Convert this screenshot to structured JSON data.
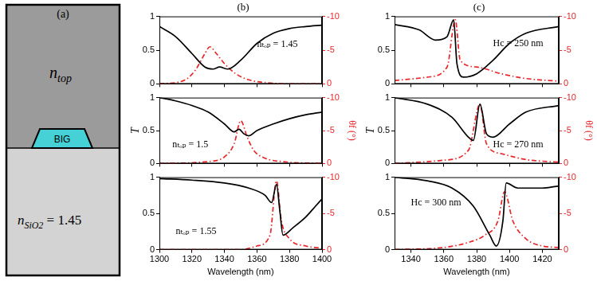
{
  "diagram": {
    "label": "(a)",
    "top_medium": {
      "symbol": "n",
      "subscript": "top"
    },
    "core": "BIG",
    "substrate": {
      "symbol": "n",
      "subscript": "SiO2",
      "text": " = 1.45"
    }
  },
  "chart_data": [
    {
      "type": "line",
      "title": "(b)",
      "annotation": "nₜₒₚ = 1.45",
      "tick_labels": "y",
      "xlim": [
        1300,
        1400
      ],
      "xticks": [
        1300,
        1320,
        1340,
        1360,
        1380,
        1400
      ],
      "ylim": [
        0,
        1
      ],
      "yticks": [
        0,
        0.5,
        1
      ],
      "y2lim": [
        0,
        -10
      ],
      "y2ticks": [
        -10,
        -5,
        0
      ],
      "series": [
        {
          "color": "#000000",
          "line_style": "solid",
          "x": [
            1300,
            1310,
            1320,
            1328,
            1333,
            1337,
            1342,
            1350,
            1360,
            1370,
            1380,
            1390,
            1400
          ],
          "values": [
            0.85,
            0.7,
            0.45,
            0.25,
            0.22,
            0.25,
            0.22,
            0.35,
            0.6,
            0.75,
            0.82,
            0.85,
            0.87
          ]
        },
        {
          "color": "#e8262b",
          "line_style": "dashdot",
          "axis": "y2",
          "x": [
            1300,
            1315,
            1322,
            1328,
            1331,
            1335,
            1340,
            1347,
            1355,
            1365,
            1380,
            1400
          ],
          "values": [
            0,
            -0.5,
            -2,
            -4.5,
            -5.5,
            -4.5,
            -3,
            -1.5,
            -0.6,
            -0.2,
            0,
            0
          ]
        }
      ]
    },
    {
      "type": "line",
      "annotation": "nₜₒₚ = 1.5",
      "tick_labels": "y",
      "ylabel": "T",
      "y2label": "θf (°)",
      "xlim": [
        1300,
        1400
      ],
      "xticks": [
        1300,
        1320,
        1340,
        1360,
        1380,
        1400
      ],
      "ylim": [
        0,
        1
      ],
      "yticks": [
        0,
        0.5,
        1
      ],
      "y2lim": [
        0,
        -10
      ],
      "y2ticks": [
        -10,
        -5,
        0
      ],
      "series": [
        {
          "color": "#000000",
          "line_style": "solid",
          "x": [
            1300,
            1310,
            1320,
            1330,
            1340,
            1346,
            1349,
            1352,
            1355,
            1360,
            1370,
            1380,
            1390,
            1400
          ],
          "values": [
            1.0,
            0.95,
            0.88,
            0.78,
            0.6,
            0.48,
            0.52,
            0.45,
            0.42,
            0.5,
            0.6,
            0.68,
            0.74,
            0.78
          ]
        },
        {
          "color": "#e8262b",
          "line_style": "dashdot",
          "axis": "y2",
          "x": [
            1300,
            1330,
            1340,
            1346,
            1350,
            1354,
            1358,
            1365,
            1375,
            1400
          ],
          "values": [
            0,
            -0.3,
            -1,
            -3,
            -6.5,
            -4,
            -2,
            -0.8,
            -0.3,
            0
          ]
        }
      ]
    },
    {
      "type": "line",
      "annotation": "nₜₒₚ = 1.55",
      "xlabel": "Wavelength (nm)",
      "xlim": [
        1300,
        1400
      ],
      "xticks": [
        1300,
        1320,
        1340,
        1360,
        1380,
        1400
      ],
      "ylim": [
        0,
        1
      ],
      "yticks": [
        0,
        0.5,
        1
      ],
      "y2lim": [
        0,
        -10
      ],
      "y2ticks": [
        -10,
        -5,
        0
      ],
      "series": [
        {
          "color": "#000000",
          "line_style": "solid",
          "x": [
            1300,
            1320,
            1340,
            1355,
            1365,
            1369,
            1372,
            1374,
            1376,
            1382,
            1390,
            1396,
            1400
          ],
          "values": [
            0.98,
            0.96,
            0.92,
            0.85,
            0.75,
            0.65,
            0.9,
            0.55,
            0.2,
            0.3,
            0.45,
            0.6,
            0.7
          ]
        },
        {
          "color": "#e8262b",
          "line_style": "dashdot",
          "axis": "y2",
          "x": [
            1300,
            1350,
            1360,
            1368,
            1372,
            1375,
            1380,
            1390,
            1400
          ],
          "values": [
            0,
            0,
            -0.5,
            -2,
            -9.5,
            -4,
            -1.5,
            -0.5,
            -0.2
          ]
        }
      ]
    },
    {
      "type": "line",
      "title": "(c)",
      "annotation": "Hc = 250 nm",
      "tick_labels": "y",
      "xlim": [
        1330,
        1430
      ],
      "xticks": [
        1340,
        1360,
        1380,
        1400,
        1420
      ],
      "ylim": [
        0,
        1
      ],
      "yticks": [
        0,
        0.5,
        1
      ],
      "y2lim": [
        0,
        -10
      ],
      "y2ticks": [
        -10,
        -5,
        0
      ],
      "series": [
        {
          "color": "#000000",
          "line_style": "solid",
          "x": [
            1330,
            1345,
            1355,
            1362,
            1366,
            1368,
            1372,
            1380,
            1390,
            1400,
            1410,
            1430
          ],
          "values": [
            0.88,
            0.8,
            0.65,
            0.7,
            0.95,
            0.3,
            0.1,
            0.15,
            0.35,
            0.6,
            0.75,
            0.85
          ]
        },
        {
          "color": "#e8262b",
          "line_style": "dashdot",
          "axis": "y2",
          "x": [
            1330,
            1350,
            1362,
            1367,
            1370,
            1380,
            1395,
            1410,
            1430
          ],
          "values": [
            -0.5,
            -1,
            -2.5,
            -9.5,
            -3.5,
            -2.5,
            -1.5,
            -0.8,
            -0.4
          ]
        }
      ]
    },
    {
      "type": "line",
      "annotation": "Hc = 270 nm",
      "tick_labels": "y",
      "ylabel": "T",
      "y2label": "θf (°)",
      "xlim": [
        1330,
        1430
      ],
      "xticks": [
        1340,
        1360,
        1380,
        1400,
        1420
      ],
      "ylim": [
        0,
        1
      ],
      "yticks": [
        0,
        0.5,
        1
      ],
      "y2lim": [
        0,
        -10
      ],
      "y2ticks": [
        -10,
        -5,
        0
      ],
      "series": [
        {
          "color": "#000000",
          "line_style": "solid",
          "x": [
            1330,
            1350,
            1365,
            1375,
            1378,
            1382,
            1386,
            1390,
            1400,
            1410,
            1430
          ],
          "values": [
            1.0,
            0.9,
            0.7,
            0.4,
            0.35,
            0.9,
            0.45,
            0.4,
            0.6,
            0.78,
            0.88
          ]
        },
        {
          "color": "#e8262b",
          "line_style": "dashdot",
          "axis": "y2",
          "x": [
            1330,
            1360,
            1375,
            1382,
            1386,
            1395,
            1410,
            1430
          ],
          "values": [
            0,
            -0.5,
            -2,
            -9,
            -3,
            -1.5,
            -0.6,
            -0.2
          ]
        }
      ]
    },
    {
      "type": "line",
      "annotation": "Hc = 300 nm",
      "xlabel": "Wavelength (nm)",
      "xlim": [
        1330,
        1430
      ],
      "xticks": [
        1340,
        1360,
        1380,
        1400,
        1420
      ],
      "ylim": [
        0,
        1
      ],
      "yticks": [
        0,
        0.5,
        1
      ],
      "y2lim": [
        0,
        -10
      ],
      "y2ticks": [
        -10,
        -5,
        0
      ],
      "series": [
        {
          "color": "#000000",
          "line_style": "solid",
          "x": [
            1330,
            1350,
            1365,
            1378,
            1388,
            1392,
            1396,
            1398,
            1405,
            1420,
            1430
          ],
          "values": [
            1.0,
            0.95,
            0.85,
            0.6,
            0.2,
            0.05,
            0.4,
            0.92,
            0.85,
            0.85,
            0.88
          ]
        },
        {
          "color": "#e8262b",
          "line_style": "dashdot",
          "axis": "y2",
          "x": [
            1330,
            1360,
            1375,
            1385,
            1393,
            1397,
            1402,
            1410,
            1420,
            1430
          ],
          "values": [
            0,
            -0.3,
            -1,
            -2,
            -4,
            -8,
            -4,
            -1.5,
            -0.5,
            -0.3
          ]
        }
      ]
    }
  ]
}
